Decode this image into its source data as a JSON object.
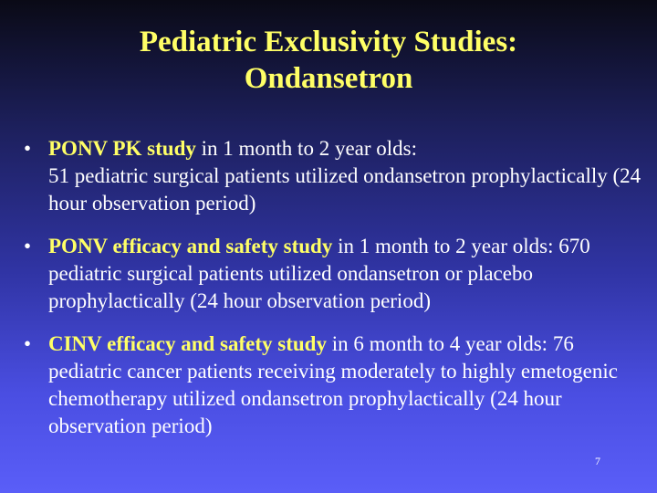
{
  "title": {
    "line1": "Pediatric Exclusivity Studies:",
    "line2": "Ondansetron"
  },
  "bullets": [
    {
      "lead": "PONV PK study",
      "text1": " in 1 month to 2 year olds:",
      "text2": "51 pediatric surgical patients utilized ondansetron prophylactically (24 hour observation period)"
    },
    {
      "lead": "PONV efficacy and safety study",
      "text1": " in 1 month to 2 year olds: 670 pediatric surgical patients utilized ondansetron or placebo prophylactically (24 hour observation period)"
    },
    {
      "lead": "CINV efficacy and safety study",
      "text1": " in 6 month to 4 year olds: 76 pediatric cancer patients receiving moderately to highly emetogenic chemotherapy utilized ondansetron prophylactically (24 hour observation period)"
    }
  ],
  "page_number": "7",
  "bullet_glyph": "•",
  "colors": {
    "title": "#ffff66",
    "lead_text": "#ffff66",
    "body_text": "#ffffff",
    "background_top": "#0a0a16",
    "background_bottom": "#5a5ef8"
  }
}
